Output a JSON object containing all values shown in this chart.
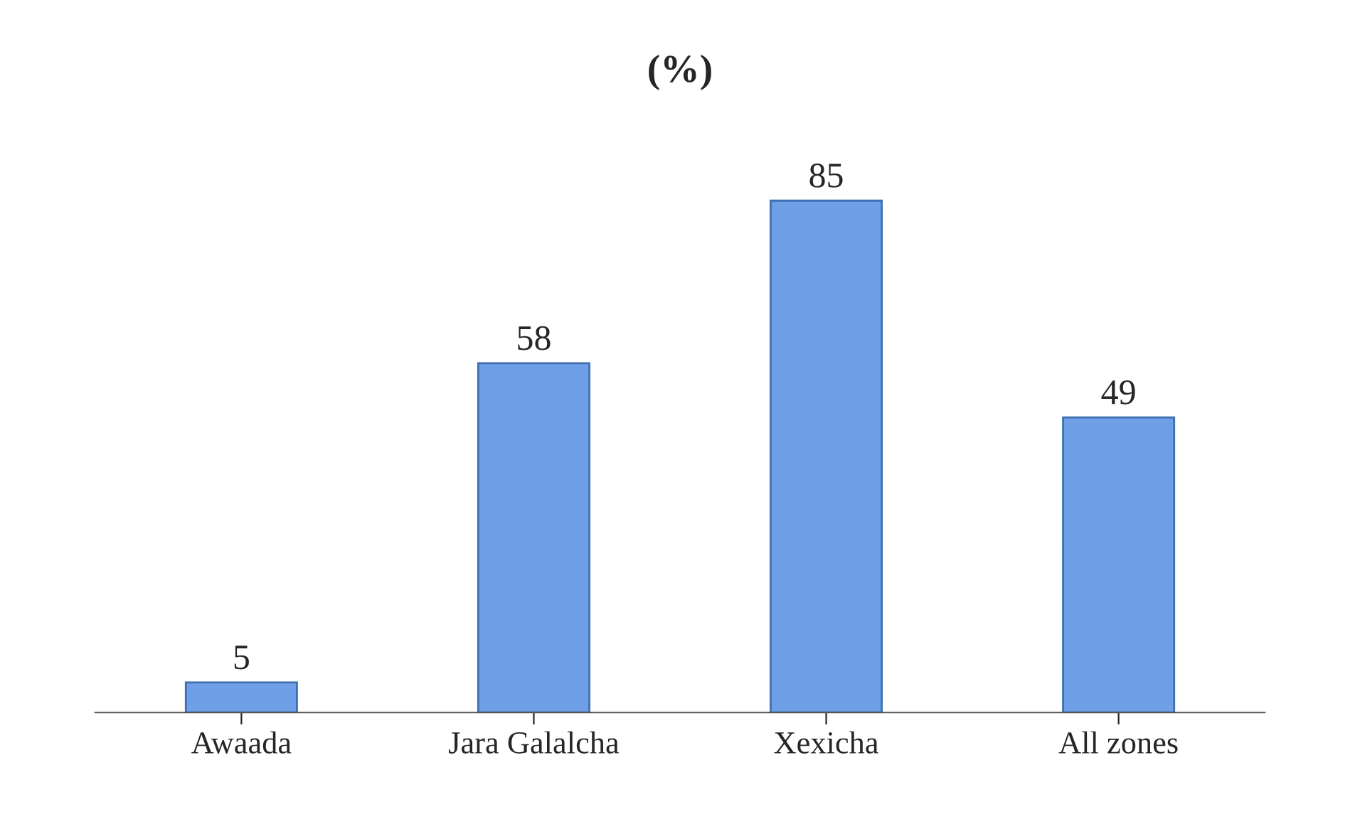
{
  "chart_data": {
    "type": "bar",
    "title": "(%)",
    "categories": [
      "Awaada",
      "Jara Galalcha",
      "Xexicha",
      "All zones"
    ],
    "values": [
      5,
      58,
      85,
      49
    ],
    "color": "#6f9fe6",
    "data_labels": true,
    "tick_labels": "x",
    "grid": false
  }
}
